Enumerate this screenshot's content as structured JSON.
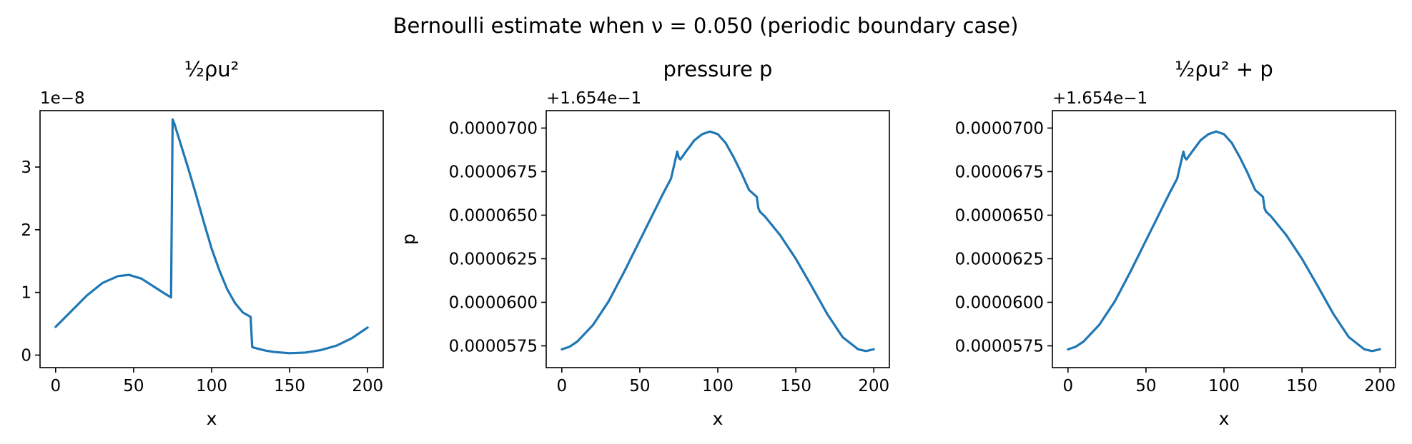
{
  "figure": {
    "suptitle": "Bernoulli estimate when ν = 0.050 (periodic boundary case)",
    "line_color": "#1f77b4"
  },
  "chart_data": [
    {
      "type": "line",
      "title": "½ρu²",
      "xlabel": "x",
      "ylabel": "",
      "offset_label": "1e−8",
      "xlim": [
        -10,
        210
      ],
      "ylim": [
        -0.2,
        3.9
      ],
      "xticks": [
        0,
        50,
        100,
        150,
        200
      ],
      "xtick_labels": [
        "0",
        "50",
        "100",
        "150",
        "200"
      ],
      "yticks": [
        0,
        1,
        2,
        3
      ],
      "ytick_labels": [
        "0",
        "1",
        "2",
        "3"
      ],
      "x": [
        0,
        10,
        20,
        30,
        40,
        47,
        55,
        65,
        70,
        74,
        75,
        76,
        80,
        85,
        90,
        95,
        100,
        105,
        110,
        115,
        120,
        125,
        126,
        127,
        130,
        135,
        140,
        150,
        160,
        170,
        180,
        190,
        200
      ],
      "values": [
        0.45,
        0.7,
        0.95,
        1.15,
        1.26,
        1.28,
        1.22,
        1.06,
        0.98,
        0.92,
        3.76,
        3.7,
        3.38,
        2.98,
        2.56,
        2.12,
        1.7,
        1.35,
        1.05,
        0.83,
        0.68,
        0.61,
        0.13,
        0.12,
        0.1,
        0.07,
        0.05,
        0.03,
        0.04,
        0.08,
        0.15,
        0.27,
        0.44
      ]
    },
    {
      "type": "line",
      "title": "pressure p",
      "xlabel": "x",
      "ylabel": "p",
      "offset_label": "+1.654e−1",
      "xlim": [
        -10,
        210
      ],
      "ylim": [
        5.625e-06,
        7.1e-06
      ],
      "xticks": [
        0,
        50,
        100,
        150,
        200
      ],
      "xtick_labels": [
        "0",
        "50",
        "100",
        "150",
        "200"
      ],
      "yticks": [
        5.75e-06,
        6e-06,
        6.25e-06,
        6.5e-06,
        6.75e-06,
        7e-06
      ],
      "ytick_labels": [
        "0.0000575",
        "0.0000600",
        "0.0000625",
        "0.0000650",
        "0.0000675",
        "0.0000700"
      ],
      "x": [
        0,
        5,
        10,
        20,
        30,
        40,
        50,
        60,
        65,
        70,
        74,
        75,
        76,
        80,
        85,
        90,
        95,
        100,
        105,
        110,
        115,
        120,
        125,
        126,
        127,
        130,
        140,
        150,
        160,
        170,
        180,
        190,
        195,
        200
      ],
      "values": [
        5.73e-06,
        5.745e-06,
        5.775e-06,
        5.87e-06,
        6.005e-06,
        6.175e-06,
        6.355e-06,
        6.535e-06,
        6.625e-06,
        6.71e-06,
        6.865e-06,
        6.83e-06,
        6.82e-06,
        6.87e-06,
        6.93e-06,
        6.965e-06,
        6.98e-06,
        6.965e-06,
        6.915e-06,
        6.835e-06,
        6.745e-06,
        6.645e-06,
        6.605e-06,
        6.54e-06,
        6.52e-06,
        6.495e-06,
        6.385e-06,
        6.25e-06,
        6.095e-06,
        5.935e-06,
        5.8e-06,
        5.73e-06,
        5.72e-06,
        5.73e-06
      ]
    },
    {
      "type": "line",
      "title": "½ρu² + p",
      "xlabel": "x",
      "ylabel": "",
      "offset_label": "+1.654e−1",
      "xlim": [
        -10,
        210
      ],
      "ylim": [
        5.625e-06,
        7.1e-06
      ],
      "xticks": [
        0,
        50,
        100,
        150,
        200
      ],
      "xtick_labels": [
        "0",
        "50",
        "100",
        "150",
        "200"
      ],
      "yticks": [
        5.75e-06,
        6e-06,
        6.25e-06,
        6.5e-06,
        6.75e-06,
        7e-06
      ],
      "ytick_labels": [
        "0.0000575",
        "0.0000600",
        "0.0000625",
        "0.0000650",
        "0.0000675",
        "0.0000700"
      ],
      "x": [
        0,
        5,
        10,
        20,
        30,
        40,
        50,
        60,
        65,
        70,
        74,
        75,
        76,
        80,
        85,
        90,
        95,
        100,
        105,
        110,
        115,
        120,
        125,
        126,
        127,
        130,
        140,
        150,
        160,
        170,
        180,
        190,
        195,
        200
      ],
      "values": [
        5.73e-06,
        5.745e-06,
        5.775e-06,
        5.87e-06,
        6.005e-06,
        6.175e-06,
        6.355e-06,
        6.535e-06,
        6.625e-06,
        6.71e-06,
        6.865e-06,
        6.83e-06,
        6.82e-06,
        6.87e-06,
        6.93e-06,
        6.965e-06,
        6.98e-06,
        6.965e-06,
        6.915e-06,
        6.835e-06,
        6.745e-06,
        6.645e-06,
        6.605e-06,
        6.54e-06,
        6.52e-06,
        6.495e-06,
        6.385e-06,
        6.25e-06,
        6.095e-06,
        5.935e-06,
        5.8e-06,
        5.73e-06,
        5.72e-06,
        5.73e-06
      ]
    }
  ]
}
